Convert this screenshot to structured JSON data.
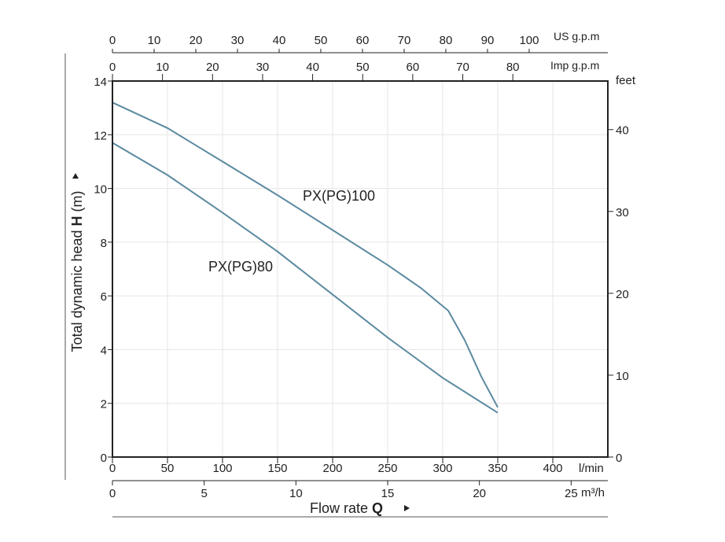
{
  "chart_data": {
    "type": "line",
    "xlabel": "Flow rate",
    "xlabel_bold": "Q",
    "ylabel": "Total dynamic head",
    "ylabel_bold": "H",
    "ylabel_unit": "(m)",
    "x_unit": "l/min",
    "xlim": [
      0,
      450
    ],
    "ylim": [
      0,
      14
    ],
    "grid": true,
    "x_ticks": [
      0,
      50,
      100,
      150,
      200,
      250,
      300,
      350,
      400
    ],
    "y_ticks": [
      0,
      2,
      4,
      6,
      8,
      10,
      12,
      14
    ],
    "secondary_axes": {
      "m3h": {
        "unit": "m³/h",
        "ticks": [
          0,
          5,
          10,
          15,
          20,
          25
        ],
        "factor_lmin": 16.6667
      },
      "us_gpm": {
        "unit": "US g.p.m",
        "ticks": [
          0,
          10,
          20,
          30,
          40,
          50,
          60,
          70,
          80,
          90,
          100
        ],
        "factor_lmin": 3.7854
      },
      "imp_gpm": {
        "unit": "Imp g.p.m",
        "ticks": [
          0,
          10,
          20,
          30,
          40,
          50,
          60,
          70,
          80
        ],
        "factor_lmin": 4.5461
      },
      "feet": {
        "unit": "feet",
        "ticks": [
          0,
          10,
          20,
          30,
          40
        ],
        "factor_m": 0.3048
      }
    },
    "series": [
      {
        "name": "PX(PG)100",
        "color": "#5b8aa0",
        "x": [
          0,
          50,
          100,
          150,
          200,
          250,
          280,
          305,
          320,
          335,
          350
        ],
        "y": [
          13.2,
          12.25,
          11.0,
          9.75,
          8.45,
          7.15,
          6.3,
          5.45,
          4.35,
          3.0,
          1.85
        ]
      },
      {
        "name": "PX(PG)80",
        "color": "#5b8aa0",
        "x": [
          0,
          50,
          100,
          150,
          200,
          250,
          300,
          350
        ],
        "y": [
          11.7,
          10.5,
          9.1,
          7.65,
          6.05,
          4.45,
          2.95,
          1.65
        ]
      }
    ]
  }
}
